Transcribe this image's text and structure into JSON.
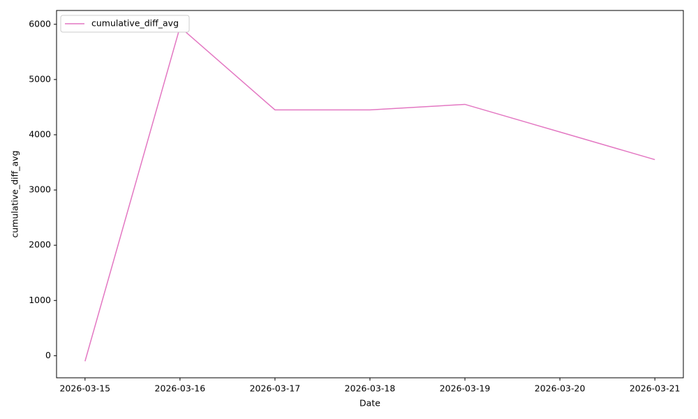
{
  "chart_data": {
    "type": "line",
    "x_label": "Date",
    "y_label": "cumulative_diff_avg",
    "x": [
      "2026-03-15",
      "2026-03-16",
      "2026-03-17",
      "2026-03-18",
      "2026-03-19",
      "2026-03-20",
      "2026-03-21"
    ],
    "series": [
      {
        "name": "cumulative_diff_avg",
        "color": "#e377c2",
        "values": [
          -100,
          5950,
          4450,
          4450,
          4550,
          4050,
          3550
        ]
      }
    ],
    "ylim": [
      -400,
      6250
    ],
    "yticks": [
      0,
      1000,
      2000,
      3000,
      4000,
      5000,
      6000
    ],
    "grid": false,
    "legend": "upper left"
  }
}
